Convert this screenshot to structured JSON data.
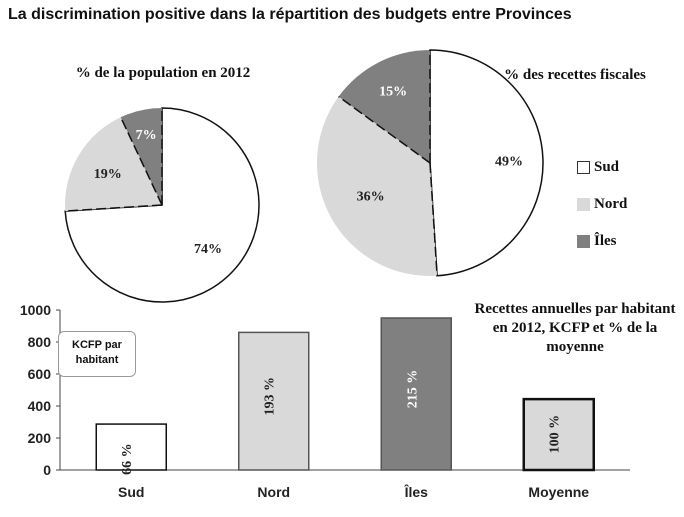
{
  "title": "La discrimination positive dans la répartition des budgets entre Provinces",
  "legend": [
    {
      "label": "Sud",
      "color": "#ffffff"
    },
    {
      "label": "Nord",
      "color": "#d9d9d9"
    },
    {
      "label": "Îles",
      "color": "#808080"
    }
  ],
  "kcfp_label_line1": "KCFP par",
  "kcfp_label_line2": "habitant",
  "chart_data": [
    {
      "type": "pie",
      "title": "% de la population en 2012",
      "labels": [
        "Sud",
        "Nord",
        "Îles"
      ],
      "values": [
        74,
        19,
        7
      ],
      "value_labels": [
        "74%",
        "19%",
        "7%"
      ],
      "colors": [
        "#ffffff",
        "#d9d9d9",
        "#808080"
      ]
    },
    {
      "type": "pie",
      "title": "% des recettes fiscales",
      "labels": [
        "Sud",
        "Nord",
        "Îles"
      ],
      "values": [
        49,
        36,
        15
      ],
      "value_labels": [
        "49%",
        "36%",
        "15%"
      ],
      "colors": [
        "#ffffff",
        "#d9d9d9",
        "#808080"
      ]
    },
    {
      "type": "bar",
      "title": "Recettes annuelles par habitant en 2012, KCFP et % de la moyenne",
      "ylabel": "KCFP par habitant",
      "categories": [
        "Sud",
        "Nord",
        "Îles",
        "Moyenne"
      ],
      "values": [
        287,
        860,
        950,
        443
      ],
      "bar_labels": [
        "66 %",
        "193 %",
        "215 %",
        "100 %"
      ],
      "colors": [
        "#ffffff",
        "#d9d9d9",
        "#808080",
        "#d9d9d9"
      ],
      "ylim": [
        0,
        1000
      ],
      "yticks": [
        0,
        200,
        400,
        600,
        800,
        1000
      ],
      "grid": false
    }
  ]
}
